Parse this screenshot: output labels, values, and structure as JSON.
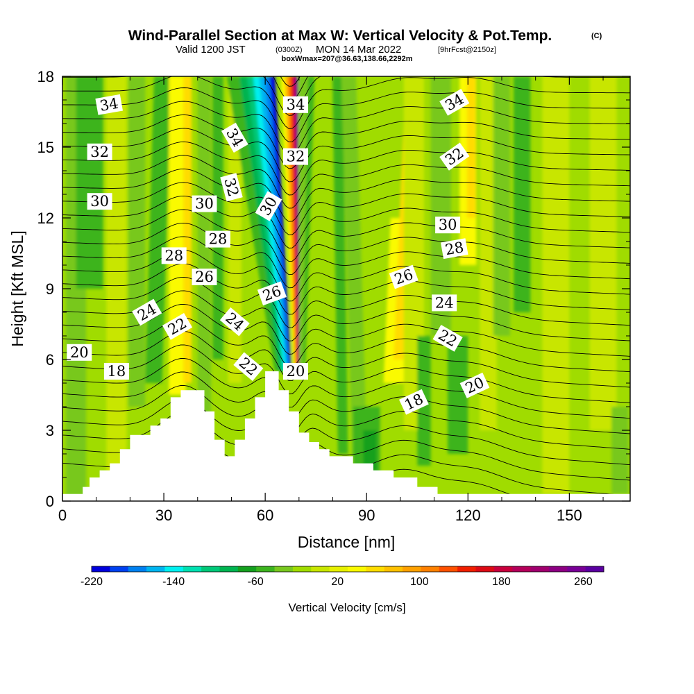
{
  "title": {
    "main": "Wind-Parallel Section at Max W: Vertical Velocity & Pot.Temp.",
    "copyright": "(C)",
    "valid_prefix": "Valid 1200 JST",
    "valid_zulu": "(0300Z)",
    "valid_date": "MON 14 Mar 2022",
    "forecast": "[9hrFcst@2150z]",
    "subtitle": "boxWmax=207@36.63,138.66,2292m"
  },
  "chart_data": {
    "type": "heatmap",
    "xlabel": "Distance [nm]",
    "ylabel": "Height [Kft MSL]",
    "xlim": [
      0,
      168
    ],
    "ylim": [
      0,
      18
    ],
    "x_ticks": [
      "0",
      "30",
      "60",
      "90",
      "120",
      "150"
    ],
    "x_tick_values": [
      0,
      30,
      60,
      90,
      120,
      150
    ],
    "y_ticks": [
      "0",
      "3",
      "6",
      "9",
      "12",
      "15",
      "18"
    ],
    "y_tick_values": [
      0,
      3,
      6,
      9,
      12,
      15,
      18
    ],
    "colorbar": {
      "label": "Vertical Velocity [cm/s]",
      "min": -220,
      "max": 280,
      "tick_labels": [
        "-220",
        "-140",
        "-60",
        "20",
        "100",
        "180",
        "260"
      ],
      "tick_values": [
        -220,
        -140,
        -60,
        20,
        100,
        180,
        260
      ],
      "colors": [
        "#0000dc",
        "#0040f0",
        "#0080f0",
        "#00b4f0",
        "#00f0f0",
        "#00e0b0",
        "#00c878",
        "#00b450",
        "#14a01e",
        "#3cb41e",
        "#78c81e",
        "#a0dc00",
        "#c8e600",
        "#e6f000",
        "#fafa00",
        "#ffdc00",
        "#ffc000",
        "#ffa000",
        "#ff8000",
        "#ff5000",
        "#f01e00",
        "#dc0a14",
        "#c8003c",
        "#b4005a",
        "#a0006e",
        "#8c0082",
        "#780096",
        "#5a00a0"
      ]
    },
    "theta_contour_labels": [
      "18",
      "20",
      "22",
      "24",
      "26",
      "28",
      "30",
      "32",
      "34"
    ],
    "terrain_kft": [
      [
        0,
        0.3
      ],
      [
        6,
        0.3
      ],
      [
        6,
        0.6
      ],
      [
        8,
        0.6
      ],
      [
        8,
        1.0
      ],
      [
        11,
        1.0
      ],
      [
        11,
        1.3
      ],
      [
        14,
        1.3
      ],
      [
        14,
        1.6
      ],
      [
        17,
        1.6
      ],
      [
        17,
        2.2
      ],
      [
        20,
        2.2
      ],
      [
        20,
        2.8
      ],
      [
        26,
        2.8
      ],
      [
        26,
        3.2
      ],
      [
        29,
        3.2
      ],
      [
        29,
        3.5
      ],
      [
        32,
        3.5
      ],
      [
        32,
        4.4
      ],
      [
        35,
        4.4
      ],
      [
        35,
        4.7
      ],
      [
        42,
        4.7
      ],
      [
        42,
        3.8
      ],
      [
        45,
        3.8
      ],
      [
        45,
        2.6
      ],
      [
        48,
        2.6
      ],
      [
        48,
        1.9
      ],
      [
        51,
        1.9
      ],
      [
        51,
        2.6
      ],
      [
        54,
        2.6
      ],
      [
        54,
        3.5
      ],
      [
        57,
        3.5
      ],
      [
        57,
        4.4
      ],
      [
        60,
        4.4
      ],
      [
        60,
        5.5
      ],
      [
        64,
        5.5
      ],
      [
        64,
        4.7
      ],
      [
        67,
        4.7
      ],
      [
        67,
        3.8
      ],
      [
        70,
        3.8
      ],
      [
        70,
        2.9
      ],
      [
        73,
        2.9
      ],
      [
        73,
        2.5
      ],
      [
        76,
        2.5
      ],
      [
        76,
        2.2
      ],
      [
        79,
        2.2
      ],
      [
        79,
        1.9
      ],
      [
        86,
        1.9
      ],
      [
        86,
        1.6
      ],
      [
        92,
        1.6
      ],
      [
        92,
        1.3
      ],
      [
        98,
        1.3
      ],
      [
        98,
        1.0
      ],
      [
        105,
        1.0
      ],
      [
        105,
        0.6
      ],
      [
        111,
        0.6
      ],
      [
        111,
        0.3
      ],
      [
        168,
        0.3
      ]
    ],
    "w_max_cm_s": 207
  }
}
